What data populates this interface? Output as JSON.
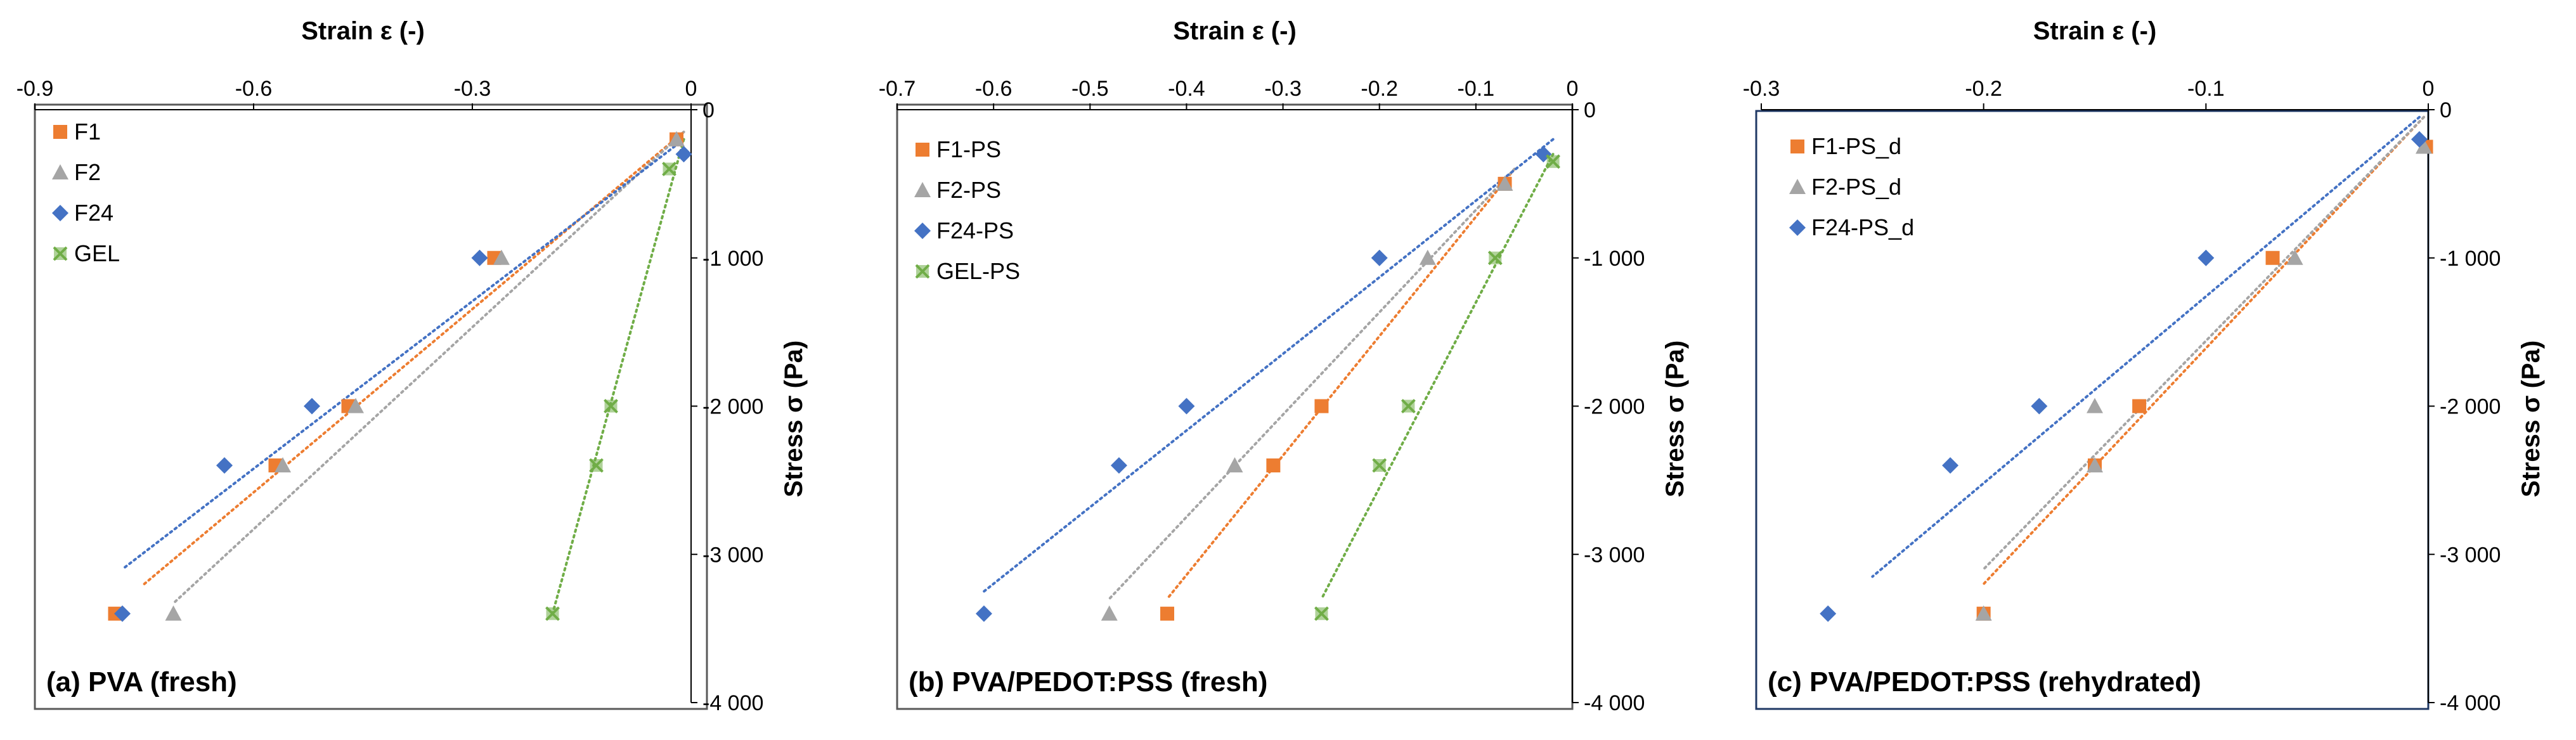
{
  "colors": {
    "F1": "#ED7D31",
    "F2": "#A5A5A5",
    "F24": "#4472C4",
    "GEL": "#70AD47"
  },
  "chart_data": [
    {
      "type": "scatter",
      "label": "(a) PVA (fresh)",
      "xlabel": "Strain ε (-)",
      "ylabel": "Stress σ (Pa)",
      "xlim": [
        -0.9,
        0
      ],
      "ylim": [
        -4000,
        0
      ],
      "xticks": [
        "-0.9",
        "-0.6",
        "-0.3",
        "0"
      ],
      "xtick_values": [
        -0.9,
        -0.6,
        -0.3,
        0
      ],
      "yticks": [
        "0",
        "-1 000",
        "-2 000",
        "-3 000",
        "-4 000"
      ],
      "ytick_values": [
        0,
        -1000,
        -2000,
        -3000,
        -4000
      ],
      "legend": "top-left",
      "series": [
        {
          "name": "F1",
          "marker": "square",
          "color": "#ED7D31",
          "x": [
            -0.02,
            -0.27,
            -0.47,
            -0.57,
            -0.79
          ],
          "y": [
            -200,
            -1000,
            -2000,
            -2400,
            -3400
          ],
          "trend": {
            "x": [
              -0.01,
              -0.75
            ],
            "y": [
              -150,
              -3200
            ]
          }
        },
        {
          "name": "F2",
          "marker": "triangle",
          "color": "#A5A5A5",
          "x": [
            -0.02,
            -0.26,
            -0.46,
            -0.56,
            -0.71
          ],
          "y": [
            -200,
            -1000,
            -2000,
            -2400,
            -3400
          ],
          "trend": {
            "x": [
              -0.01,
              -0.71
            ],
            "y": [
              -150,
              -3330
            ]
          }
        },
        {
          "name": "F24",
          "marker": "diamond",
          "color": "#4472C4",
          "x": [
            -0.01,
            -0.29,
            -0.52,
            -0.64,
            -0.78
          ],
          "y": [
            -300,
            -1000,
            -2000,
            -2400,
            -3400
          ],
          "trend": {
            "x": [
              -0.01,
              -0.78
            ],
            "y": [
              -200,
              -3100
            ]
          }
        },
        {
          "name": "GEL",
          "marker": "x-square",
          "color": "#70AD47",
          "x": [
            -0.03,
            -0.11,
            -0.13,
            -0.19
          ],
          "y": [
            -400,
            -2000,
            -2400,
            -3400
          ],
          "trend": {
            "x": [
              -0.01,
              -0.19
            ],
            "y": [
              -200,
              -3400
            ]
          }
        }
      ]
    },
    {
      "type": "scatter",
      "label": "(b) PVA/PEDOT:PSS (fresh)",
      "xlabel": "Strain ε (-)",
      "ylabel": "Stress σ (Pa)",
      "xlim": [
        -0.7,
        0
      ],
      "ylim": [
        -4000,
        0
      ],
      "xticks": [
        "-0.7",
        "-0.6",
        "-0.5",
        "-0.4",
        "-0.3",
        "-0.2",
        "-0.1",
        "0"
      ],
      "xtick_values": [
        -0.7,
        -0.6,
        -0.5,
        -0.4,
        -0.3,
        -0.2,
        -0.1,
        0
      ],
      "yticks": [
        "0",
        "-1 000",
        "-2 000",
        "-3 000",
        "-4 000"
      ],
      "ytick_values": [
        0,
        -1000,
        -2000,
        -3000,
        -4000
      ],
      "legend": "top-left",
      "series": [
        {
          "name": "F1-PS",
          "marker": "square",
          "color": "#ED7D31",
          "x": [
            -0.07,
            -0.26,
            -0.31,
            -0.42
          ],
          "y": [
            -500,
            -2000,
            -2400,
            -3400
          ],
          "trend": {
            "x": [
              -0.06,
              -0.42
            ],
            "y": [
              -400,
              -3300
            ]
          }
        },
        {
          "name": "F2-PS",
          "marker": "triangle",
          "color": "#A5A5A5",
          "x": [
            -0.07,
            -0.15,
            -0.35,
            -0.48
          ],
          "y": [
            -500,
            -1000,
            -2400,
            -3400
          ],
          "trend": {
            "x": [
              -0.06,
              -0.48
            ],
            "y": [
              -400,
              -3300
            ]
          }
        },
        {
          "name": "F24-PS",
          "marker": "diamond",
          "color": "#4472C4",
          "x": [
            -0.03,
            -0.2,
            -0.4,
            -0.47,
            -0.61
          ],
          "y": [
            -300,
            -1000,
            -2000,
            -2400,
            -3400
          ],
          "trend": {
            "x": [
              -0.02,
              -0.61
            ],
            "y": [
              -200,
              -3250
            ]
          }
        },
        {
          "name": "GEL-PS",
          "marker": "x-square",
          "color": "#70AD47",
          "x": [
            -0.02,
            -0.08,
            -0.17,
            -0.2,
            -0.26
          ],
          "y": [
            -350,
            -1000,
            -2000,
            -2400,
            -3400
          ],
          "trend": {
            "x": [
              -0.02,
              -0.26
            ],
            "y": [
              -300,
              -3300
            ]
          }
        }
      ]
    },
    {
      "type": "scatter",
      "label": "(c) PVA/PEDOT:PSS (rehydrated)",
      "xlabel": "Strain ε (-)",
      "ylabel": "Stress σ (Pa)",
      "xlim": [
        -0.3,
        0
      ],
      "ylim": [
        -4000,
        0
      ],
      "xticks": [
        "-0.3",
        "-0.2",
        "-0.1",
        "0"
      ],
      "xtick_values": [
        -0.3,
        -0.2,
        -0.1,
        0
      ],
      "yticks": [
        "0",
        "-1 000",
        "-2 000",
        "-3 000",
        "-4 000"
      ],
      "ytick_values": [
        0,
        -1000,
        -2000,
        -3000,
        -4000
      ],
      "legend": "top-left",
      "series": [
        {
          "name": "F1-PS_d",
          "marker": "square",
          "color": "#ED7D31",
          "x": [
            -0.001,
            -0.07,
            -0.13,
            -0.15,
            -0.2
          ],
          "y": [
            -250,
            -1000,
            -2000,
            -2400,
            -3400
          ],
          "trend": {
            "x": [
              -0.002,
              -0.2
            ],
            "y": [
              -50,
              -3200
            ]
          }
        },
        {
          "name": "F2-PS_d",
          "marker": "triangle",
          "color": "#A5A5A5",
          "x": [
            -0.002,
            -0.06,
            -0.15,
            -0.15,
            -0.2
          ],
          "y": [
            -250,
            -1000,
            -2000,
            -2400,
            -3400
          ],
          "trend": {
            "x": [
              -0.002,
              -0.2
            ],
            "y": [
              -50,
              -3100
            ]
          }
        },
        {
          "name": "F24-PS_d",
          "marker": "diamond",
          "color": "#4472C4",
          "x": [
            -0.004,
            -0.1,
            -0.175,
            -0.215,
            -0.27
          ],
          "y": [
            -200,
            -1000,
            -2000,
            -2400,
            -3400
          ],
          "trend": {
            "x": [
              -0.004,
              -0.25
            ],
            "y": [
              -50,
              -3150
            ]
          }
        }
      ]
    }
  ]
}
